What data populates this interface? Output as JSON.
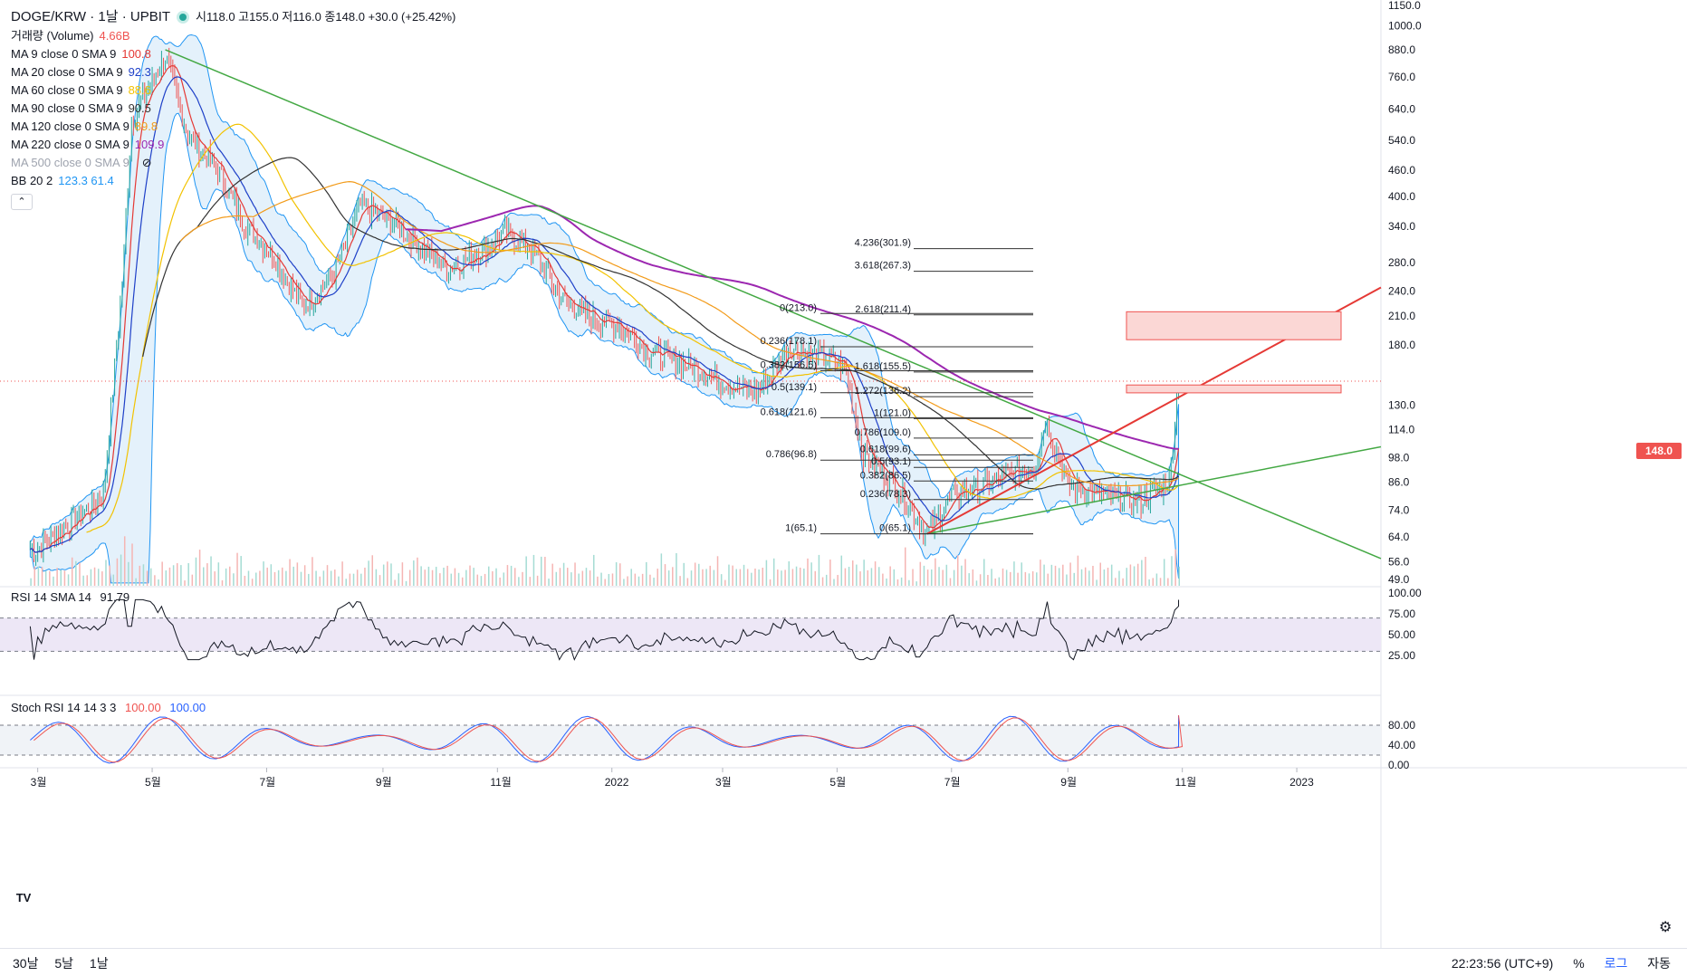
{
  "header": {
    "symbol": "DOGE/KRW · 1날 · UPBIT",
    "ohlc": "시118.0 고155.0 저116.0 종148.0 +30.0 (+25.42%)"
  },
  "legend": [
    {
      "label": "거래량 (Volume)",
      "value": "4.66B",
      "color": "#ef5350"
    },
    {
      "label": "MA 9 close 0 SMA 9",
      "value": "100.8",
      "color": "#e53935"
    },
    {
      "label": "MA 20 close 0 SMA 9",
      "value": "92.3",
      "color": "#1e40c8"
    },
    {
      "label": "MA 60 close 0 SMA 9",
      "value": "88.6",
      "color": "#f2c200"
    },
    {
      "label": "MA 90 close 0 SMA 9",
      "value": "90.5",
      "color": "#333333"
    },
    {
      "label": "MA 120 close 0 SMA 9",
      "value": "89.8",
      "color": "#f29b1a"
    },
    {
      "label": "MA 220 close 0 SMA 9",
      "value": "109.9",
      "color": "#9c27b0"
    },
    {
      "label": "MA 500 close 0 SMA 9",
      "value": "",
      "color": "#9ea3ae"
    },
    {
      "label": "BB 20 2",
      "value": "123.3  61.4",
      "color": "#2196f3"
    }
  ],
  "rsi_legend": {
    "label": "RSI 14 SMA 14",
    "value": "91.79"
  },
  "stoch_legend": {
    "label": "Stoch RSI 14 14 3 3",
    "k": "100.00",
    "d": "100.00"
  },
  "price_axis": [
    "1150.0",
    "1000.0",
    "880.0",
    "760.0",
    "640.0",
    "540.0",
    "460.0",
    "400.0",
    "340.0",
    "280.0",
    "240.0",
    "210.0",
    "180.0",
    "148.0",
    "130.0",
    "114.0",
    "98.0",
    "86.0",
    "74.0",
    "64.0",
    "56.0",
    "49.0"
  ],
  "rsi_axis": [
    "100.00",
    "75.00",
    "50.00",
    "25.00"
  ],
  "stoch_axis": [
    "80.00",
    "40.00",
    "0.00"
  ],
  "time_axis": [
    "3월",
    "5월",
    "7월",
    "9월",
    "11월",
    "2022",
    "3월",
    "5월",
    "7월",
    "9월",
    "11월",
    "2023"
  ],
  "last_price": "148.0",
  "fib_left": [
    {
      "label": "0(213.0)",
      "value": 213.0
    },
    {
      "label": "0.236(178.1)",
      "value": 178.1
    },
    {
      "label": "0.382(156.5)",
      "value": 156.5
    },
    {
      "label": "0.5(139.1)",
      "value": 139.1
    },
    {
      "label": "0.618(121.6)",
      "value": 121.6
    },
    {
      "label": "0.786(96.8)",
      "value": 96.8
    },
    {
      "label": "1(65.1)",
      "value": 65.1
    }
  ],
  "fib_right": [
    {
      "label": "4.236(301.9)",
      "value": 301.9
    },
    {
      "label": "3.618(267.3)",
      "value": 267.3
    },
    {
      "label": "2.618(211.4)",
      "value": 211.4
    },
    {
      "label": "1.618(155.5)",
      "value": 155.5
    },
    {
      "label": "1.272(136.2)",
      "value": 136.2
    },
    {
      "label": "1(121.0)",
      "value": 121.0
    },
    {
      "label": "0.786(109.0)",
      "value": 109.0
    },
    {
      "label": "0.618(99.6)",
      "value": 99.6
    },
    {
      "label": "0.5(93.1)",
      "value": 93.1
    },
    {
      "label": "0.382(86.5)",
      "value": 86.5
    },
    {
      "label": "0.236(78.3)",
      "value": 78.3
    },
    {
      "label": "0(65.1)",
      "value": 65.1
    }
  ],
  "bottom_bar": {
    "ranges": [
      "30날",
      "5날",
      "1날"
    ],
    "clock": "22:23:56 (UTC+9)",
    "percent": "%",
    "log": "로그",
    "auto": "자동"
  },
  "colors": {
    "up": "#26a69a",
    "down": "#ef5350",
    "trend_green": "#43a843",
    "trend_red": "#e53935",
    "band_fill": "#ddeefa",
    "rsi_fill": "#ede7f6",
    "stoch_k": "#2962ff",
    "stoch_d": "#ef5350"
  },
  "chart_data": {
    "type": "candlestick",
    "scale": "log",
    "ylim": [
      49,
      1150
    ],
    "x_months": [
      "3월",
      "5월",
      "7월",
      "9월",
      "11월",
      "2022",
      "3월",
      "5월",
      "7월",
      "9월",
      "11월",
      "2023"
    ],
    "close_path": [
      [
        "2021-03-01",
        60
      ],
      [
        "2021-03-20",
        70
      ],
      [
        "2021-04-05",
        80
      ],
      [
        "2021-04-15",
        250
      ],
      [
        "2021-04-20",
        600
      ],
      [
        "2021-05-08",
        850
      ],
      [
        "2021-05-20",
        560
      ],
      [
        "2021-06-05",
        460
      ],
      [
        "2021-06-20",
        340
      ],
      [
        "2021-07-05",
        290
      ],
      [
        "2021-07-20",
        220
      ],
      [
        "2021-08-05",
        260
      ],
      [
        "2021-08-20",
        380
      ],
      [
        "2021-09-05",
        350
      ],
      [
        "2021-09-20",
        310
      ],
      [
        "2021-10-05",
        270
      ],
      [
        "2021-10-25",
        300
      ],
      [
        "2021-11-05",
        330
      ],
      [
        "2021-11-20",
        300
      ],
      [
        "2021-12-05",
        230
      ],
      [
        "2021-12-20",
        210
      ],
      [
        "2022-01-05",
        200
      ],
      [
        "2022-01-20",
        175
      ],
      [
        "2022-02-05",
        165
      ],
      [
        "2022-02-20",
        155
      ],
      [
        "2022-03-05",
        145
      ],
      [
        "2022-03-20",
        140
      ],
      [
        "2022-04-05",
        178
      ],
      [
        "2022-04-20",
        170
      ],
      [
        "2022-05-05",
        160
      ],
      [
        "2022-05-15",
        100
      ],
      [
        "2022-06-01",
        85
      ],
      [
        "2022-06-18",
        65
      ],
      [
        "2022-07-01",
        80
      ],
      [
        "2022-07-20",
        85
      ],
      [
        "2022-08-15",
        95
      ],
      [
        "2022-08-20",
        121
      ],
      [
        "2022-09-01",
        85
      ],
      [
        "2022-09-20",
        80
      ],
      [
        "2022-10-10",
        78
      ],
      [
        "2022-10-25",
        86
      ],
      [
        "2022-10-30",
        148
      ]
    ],
    "fibonacci_retracement": [
      213.0,
      178.1,
      156.5,
      139.1,
      121.6,
      96.8,
      65.1
    ],
    "fibonacci_extension": [
      301.9,
      267.3,
      211.4,
      155.5,
      136.2,
      121.0,
      109.0,
      99.6,
      93.1,
      86.5,
      78.3,
      65.1
    ],
    "resistance_zones": [
      [
        185,
        215
      ],
      [
        139,
        145
      ]
    ],
    "rsi": {
      "value": 91.79,
      "bands": [
        70,
        30
      ]
    },
    "stoch_rsi": {
      "k": 100.0,
      "d": 100.0,
      "bands": [
        80,
        20
      ]
    }
  }
}
